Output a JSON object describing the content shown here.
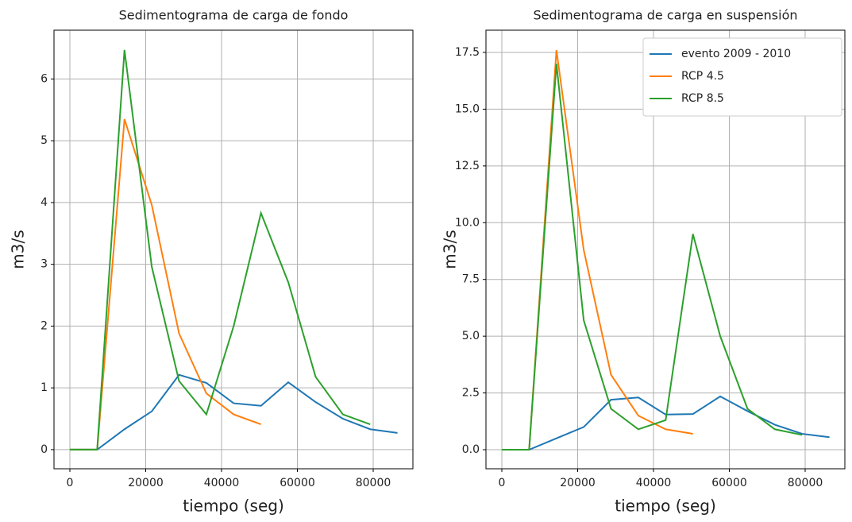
{
  "chart_data": [
    {
      "type": "line",
      "title": "Sedimentograma de carga de fondo",
      "xlabel": "tiempo (seg)",
      "ylabel": "m3/s",
      "x": [
        0,
        7200,
        14400,
        21600,
        28800,
        36000,
        43200,
        50400,
        57600,
        64800,
        72000,
        79200,
        86400
      ],
      "series": [
        {
          "color": "#1f77b4",
          "values": [
            0,
            0,
            0.33,
            0.62,
            1.21,
            1.08,
            0.75,
            0.71,
            1.09,
            0.77,
            0.5,
            0.33,
            0.27
          ]
        },
        {
          "color": "#ff7f0e",
          "values": [
            0,
            0,
            5.35,
            3.96,
            1.88,
            0.91,
            0.57,
            0.41,
            null,
            null,
            null,
            null,
            null
          ]
        },
        {
          "color": "#2ca02c",
          "values": [
            0,
            0,
            6.47,
            2.96,
            1.11,
            0.57,
            2.0,
            3.83,
            2.71,
            1.18,
            0.57,
            0.41,
            null
          ]
        }
      ],
      "xlim": [
        -4190,
        90470
      ],
      "ylim": [
        -0.31,
        6.79
      ],
      "xticks": [
        0,
        20000,
        40000,
        60000,
        80000
      ],
      "yticks": [
        0,
        1,
        2,
        3,
        4,
        5,
        6
      ],
      "grid": true
    },
    {
      "type": "line",
      "title": "Sedimentograma de carga en suspensión",
      "xlabel": "tiempo (seg)",
      "ylabel": "m3/s",
      "x": [
        0,
        7200,
        14400,
        21600,
        28800,
        36000,
        43200,
        50400,
        57600,
        64800,
        72000,
        79200,
        86400
      ],
      "series": [
        {
          "name": "evento 2009 - 2010",
          "color": "#1f77b4",
          "values": [
            0,
            0,
            0.5,
            1.0,
            2.2,
            2.3,
            1.55,
            1.57,
            2.35,
            1.7,
            1.1,
            0.7,
            0.55
          ]
        },
        {
          "name": "RCP 4.5",
          "color": "#ff7f0e",
          "values": [
            0,
            0,
            17.6,
            8.8,
            3.3,
            1.5,
            0.9,
            0.7,
            null,
            null,
            null,
            null,
            null
          ]
        },
        {
          "name": "RCP 8.5",
          "color": "#2ca02c",
          "values": [
            0,
            0,
            17.0,
            5.7,
            1.8,
            0.9,
            1.3,
            9.5,
            5.0,
            1.8,
            0.9,
            0.65,
            null
          ]
        }
      ],
      "xlim": [
        -4190,
        90470
      ],
      "ylim": [
        -0.84,
        18.48
      ],
      "xticks": [
        0,
        20000,
        40000,
        60000,
        80000
      ],
      "yticks": [
        {
          "value": 0,
          "label": "0.0"
        },
        2.5,
        {
          "value": 5,
          "label": "5.0"
        },
        7.5,
        {
          "value": 10,
          "label": "10.0"
        },
        12.5,
        {
          "value": 15,
          "label": "15.0"
        },
        17.5
      ],
      "grid": true,
      "legend": "upper right"
    }
  ]
}
